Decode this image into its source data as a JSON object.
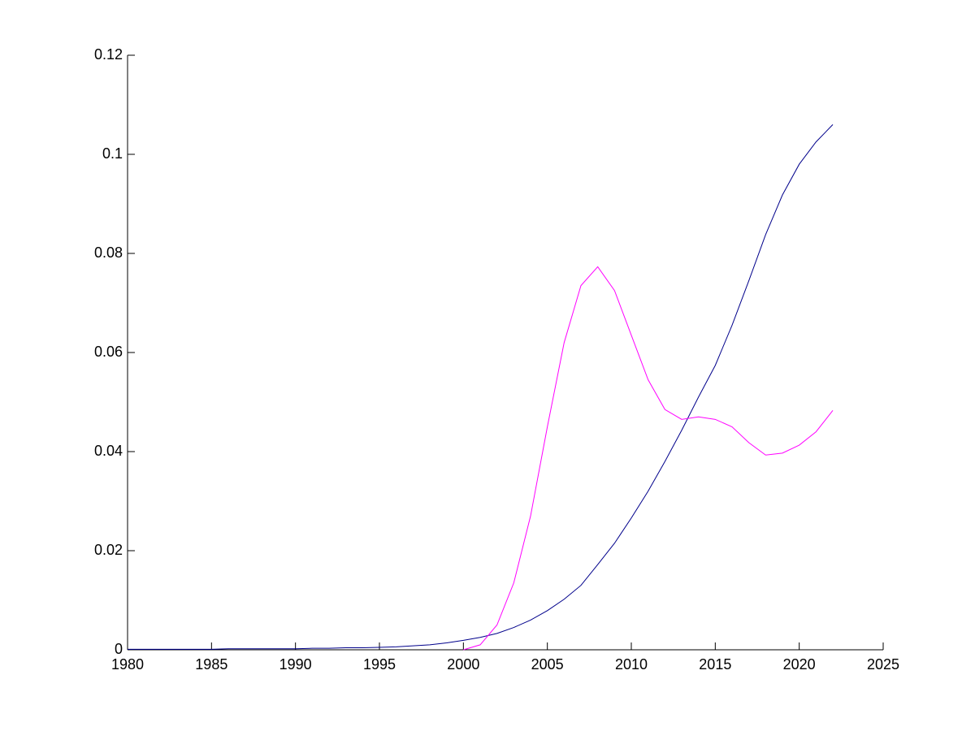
{
  "chart_data": {
    "type": "line",
    "x": [
      1980,
      1981,
      1982,
      1983,
      1984,
      1985,
      1986,
      1987,
      1988,
      1989,
      1990,
      1991,
      1992,
      1993,
      1994,
      1995,
      1996,
      1997,
      1998,
      1999,
      2000,
      2001,
      2002,
      2003,
      2004,
      2005,
      2006,
      2007,
      2008,
      2009,
      2010,
      2011,
      2012,
      2013,
      2014,
      2015,
      2016,
      2017,
      2018,
      2019,
      2020,
      2021,
      2022
    ],
    "series": [
      {
        "color": "#00008b",
        "values": [
          0.0001,
          0.0001,
          0.0001,
          0.0001,
          0.0001,
          0.0001,
          0.0002,
          0.0002,
          0.0002,
          0.0002,
          0.0002,
          0.0003,
          0.0003,
          0.0004,
          0.0004,
          0.0005,
          0.0006,
          0.0008,
          0.001,
          0.0014,
          0.0019,
          0.0025,
          0.0033,
          0.0045,
          0.006,
          0.0079,
          0.0102,
          0.013,
          0.0172,
          0.0215,
          0.0266,
          0.032,
          0.038,
          0.0443,
          0.051,
          0.0574,
          0.0655,
          0.0745,
          0.0838,
          0.0918,
          0.098,
          0.1025,
          0.106
        ]
      },
      {
        "color": "#ff00ff",
        "values": [
          null,
          null,
          null,
          null,
          null,
          null,
          null,
          null,
          null,
          null,
          null,
          null,
          null,
          null,
          null,
          null,
          null,
          null,
          null,
          null,
          0,
          0.001,
          0.005,
          0.0135,
          0.027,
          0.045,
          0.062,
          0.0735,
          0.0773,
          0.0725,
          0.0635,
          0.0545,
          0.0485,
          0.0465,
          0.047,
          0.0465,
          0.045,
          0.0418,
          0.0393,
          0.0397,
          0.0413,
          0.044,
          0.0483
        ]
      }
    ],
    "xlim": [
      1980,
      2025
    ],
    "xticks": [
      1980,
      1985,
      1990,
      1995,
      2000,
      2005,
      2010,
      2015,
      2020,
      2025
    ],
    "ylim": [
      0,
      0.12
    ],
    "yticks": [
      0,
      0.02,
      0.04,
      0.06,
      0.08,
      0.1,
      0.12
    ]
  }
}
